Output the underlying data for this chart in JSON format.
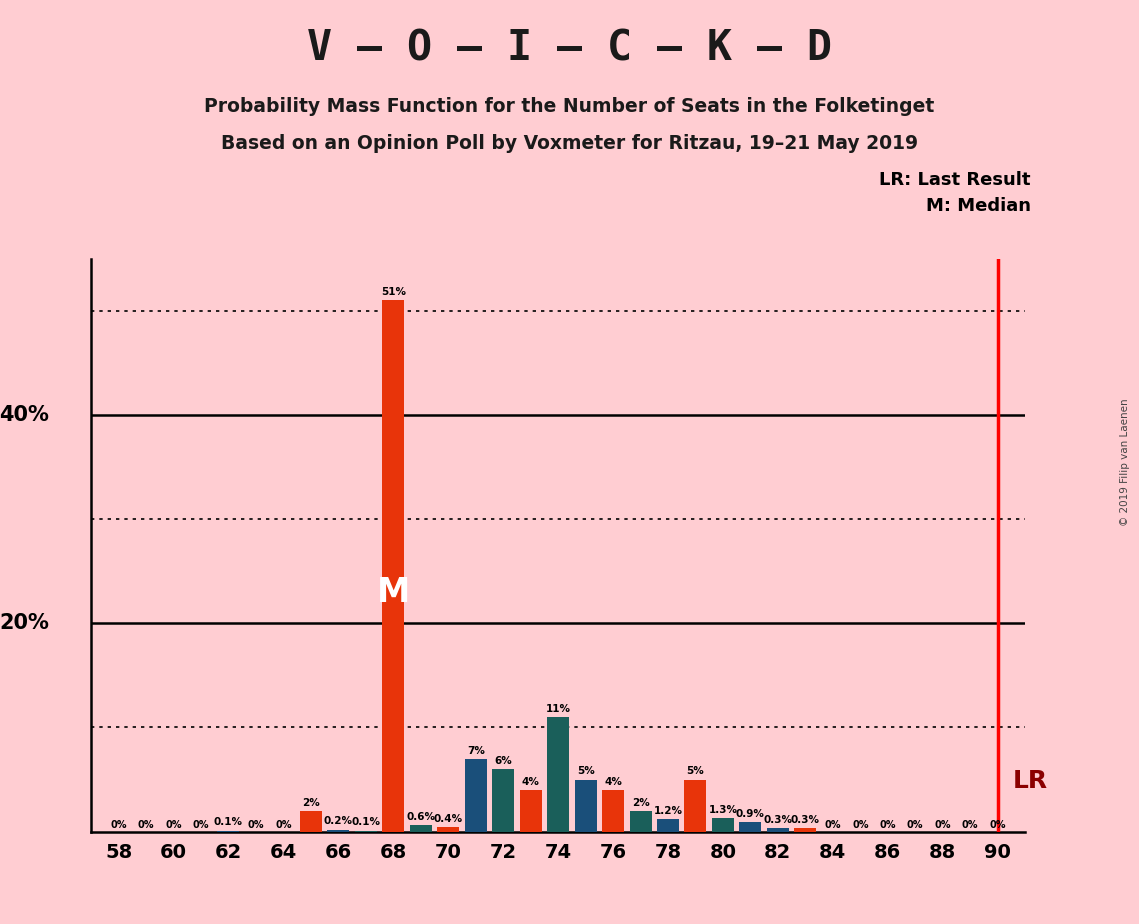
{
  "title_main": "V – O – I – C – K – D",
  "subtitle1": "Probability Mass Function for the Number of Seats in the Folketinget",
  "subtitle2": "Based on an Opinion Poll by Voxmeter for Ritzau, 19–21 May 2019",
  "copyright": "© 2019 Filip van Laenen",
  "lr_label": "LR: Last Result",
  "m_label": "M: Median",
  "lr_x": 90,
  "median_x": 68,
  "background_color": "#FFCDD2",
  "bar_color_orange": "#E8340A",
  "bar_color_blue": "#1A4F7A",
  "bar_color_teal": "#1A5F5A",
  "seats": [
    58,
    59,
    60,
    61,
    62,
    63,
    64,
    65,
    66,
    67,
    68,
    69,
    70,
    71,
    72,
    73,
    74,
    75,
    76,
    77,
    78,
    79,
    80,
    81,
    82,
    83,
    84,
    85,
    86,
    87,
    88,
    89,
    90
  ],
  "values": [
    0.0,
    0.0,
    0.0,
    0.0,
    0.1,
    0.0,
    0.0,
    2.0,
    0.2,
    0.1,
    51.0,
    0.6,
    0.4,
    7.0,
    6.0,
    4.0,
    11.0,
    5.0,
    4.0,
    2.0,
    1.2,
    5.0,
    1.3,
    0.9,
    0.3,
    0.3,
    0.0,
    0.0,
    0.0,
    0.0,
    0.0,
    0.0,
    0.0
  ],
  "bar_colors": [
    "#1A4F7A",
    "#1A4F7A",
    "#1A4F7A",
    "#1A4F7A",
    "#1A4F7A",
    "#1A4F7A",
    "#1A4F7A",
    "#E8340A",
    "#1A4F7A",
    "#1A5F5A",
    "#E8340A",
    "#1A5F5A",
    "#E8340A",
    "#1A4F7A",
    "#1A5F5A",
    "#E8340A",
    "#1A5F5A",
    "#1A4F7A",
    "#E8340A",
    "#1A5F5A",
    "#1A4F7A",
    "#E8340A",
    "#1A5F5A",
    "#1A4F7A",
    "#1A4F7A",
    "#E8340A",
    "#1A4F7A",
    "#1A4F7A",
    "#1A4F7A",
    "#1A4F7A",
    "#1A4F7A",
    "#1A4F7A",
    "#1A4F7A"
  ],
  "labels": [
    "0%",
    "0%",
    "0%",
    "0%",
    "0.1%",
    "0%",
    "0%",
    "2%",
    "0.2%",
    "0.1%",
    "51%",
    "0.6%",
    "0.4%",
    "7%",
    "6%",
    "4%",
    "11%",
    "5%",
    "4%",
    "2%",
    "1.2%",
    "5%",
    "1.3%",
    "0.9%",
    "0.3%",
    "0.3%",
    "0%",
    "0%",
    "0%",
    "0%",
    "0%",
    "0%",
    "0%"
  ],
  "xtick_seats": [
    58,
    60,
    62,
    64,
    66,
    68,
    70,
    72,
    74,
    76,
    78,
    80,
    82,
    84,
    86,
    88,
    90
  ],
  "ylim": [
    0,
    55
  ],
  "solid_ylines": [
    20,
    40
  ],
  "dotted_ylines": [
    10,
    30,
    50
  ]
}
